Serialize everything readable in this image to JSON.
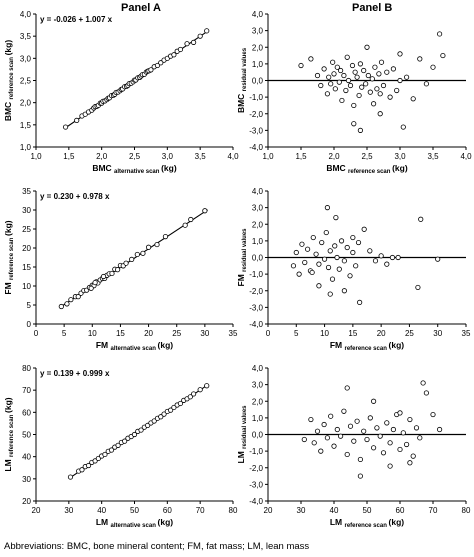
{
  "panel_titles": [
    "Panel A",
    "Panel B"
  ],
  "footnote": "Abbreviations: BMC, bone mineral content; FM, fat mass; LM, lean mass",
  "chart_data": [
    {
      "type": "scatter",
      "panel": "A",
      "row": 0,
      "equation": "y = -0.026 + 1.007 x",
      "xlabel": "BMC",
      "xlabel_sub": "alternative scan",
      "xunit": "(kg)",
      "ylabel": "BMC",
      "ylabel_sub": "reference scan",
      "yunit": "(kg)",
      "xlim": [
        1.0,
        4.0
      ],
      "ylim": [
        1.0,
        4.0
      ],
      "xticks": [
        "1,0",
        "1,5",
        "2,0",
        "2,5",
        "3,0",
        "3,5",
        "4,0"
      ],
      "yticks": [
        "1,0",
        "1,5",
        "2,0",
        "2,5",
        "3,0",
        "3,5",
        "4,0"
      ],
      "fit": {
        "intercept": -0.026,
        "slope": 1.007,
        "x_from": 1.45,
        "x_to": 3.6
      },
      "x": [
        1.45,
        1.62,
        1.7,
        1.75,
        1.8,
        1.85,
        1.88,
        1.9,
        1.93,
        1.95,
        1.98,
        2.0,
        2.02,
        2.05,
        2.08,
        2.1,
        2.12,
        2.15,
        2.18,
        2.2,
        2.22,
        2.25,
        2.28,
        2.3,
        2.32,
        2.35,
        2.38,
        2.4,
        2.42,
        2.45,
        2.48,
        2.5,
        2.52,
        2.55,
        2.58,
        2.6,
        2.62,
        2.65,
        2.68,
        2.7,
        2.72,
        2.75,
        2.8,
        2.85,
        2.9,
        2.95,
        3.0,
        3.05,
        3.1,
        3.15,
        3.2,
        3.3,
        3.4,
        3.5,
        3.6
      ],
      "y": [
        1.45,
        1.6,
        1.7,
        1.74,
        1.79,
        1.83,
        1.88,
        1.91,
        1.92,
        1.94,
        1.99,
        1.99,
        2.03,
        2.04,
        2.07,
        2.1,
        2.11,
        2.16,
        2.17,
        2.19,
        2.23,
        2.24,
        2.27,
        2.3,
        2.31,
        2.36,
        2.37,
        2.39,
        2.43,
        2.44,
        2.47,
        2.51,
        2.51,
        2.56,
        2.57,
        2.6,
        2.63,
        2.64,
        2.69,
        2.71,
        2.72,
        2.74,
        2.81,
        2.84,
        2.9,
        2.96,
        3.0,
        3.05,
        3.08,
        3.16,
        3.2,
        3.33,
        3.36,
        3.5,
        3.62
      ]
    },
    {
      "type": "scatter",
      "panel": "B",
      "row": 0,
      "xlabel": "BMC",
      "xlabel_sub": "reference scan",
      "xunit": "(kg)",
      "ylabel": "BMC",
      "ylabel_sub": "residual values",
      "yunit": "",
      "xlim": [
        1.0,
        4.0
      ],
      "ylim": [
        -4.0,
        4.0
      ],
      "xticks": [
        "1,0",
        "1,5",
        "2,0",
        "2,5",
        "3,0",
        "3,5",
        "4,0"
      ],
      "yticks": [
        "-4,0",
        "-3,0",
        "-2,0",
        "-1,0",
        "0,0",
        "1,0",
        "2,0",
        "3,0",
        "4,0"
      ],
      "zero_line": 0,
      "x": [
        1.5,
        1.65,
        1.75,
        1.8,
        1.85,
        1.9,
        1.92,
        1.95,
        1.98,
        2.0,
        2.02,
        2.05,
        2.08,
        2.1,
        2.12,
        2.15,
        2.18,
        2.2,
        2.22,
        2.25,
        2.28,
        2.3,
        2.32,
        2.35,
        2.38,
        2.4,
        2.42,
        2.45,
        2.48,
        2.5,
        2.52,
        2.55,
        2.58,
        2.6,
        2.62,
        2.65,
        2.68,
        2.7,
        2.72,
        2.75,
        2.8,
        2.85,
        2.9,
        2.95,
        3.0,
        3.05,
        3.1,
        3.2,
        3.3,
        3.4,
        3.5,
        3.6,
        3.65,
        2.4,
        2.3,
        3.0,
        2.7
      ],
      "y": [
        0.9,
        1.3,
        0.3,
        -0.3,
        0.7,
        -0.8,
        0.2,
        -0.2,
        1.1,
        0.4,
        -0.5,
        0.8,
        -0.1,
        0.6,
        -1.2,
        0.3,
        -0.6,
        1.4,
        0.0,
        -0.3,
        0.9,
        -1.5,
        0.5,
        0.2,
        -0.9,
        1.0,
        -0.4,
        0.6,
        -0.2,
        2.0,
        0.3,
        -0.7,
        0.1,
        -1.4,
        0.8,
        -0.5,
        0.4,
        -2.0,
        1.1,
        -0.3,
        0.5,
        -1.0,
        0.7,
        -0.6,
        1.6,
        -2.8,
        0.2,
        -1.1,
        1.3,
        -0.2,
        0.8,
        2.8,
        1.5,
        -3.0,
        -2.6,
        0.0,
        -0.8
      ]
    },
    {
      "type": "scatter",
      "panel": "A",
      "row": 1,
      "equation": "y = 0.230 + 0.978 x",
      "xlabel": "FM",
      "xlabel_sub": "alternative scan",
      "xunit": "(kg)",
      "ylabel": "FM",
      "ylabel_sub": "reference scan",
      "yunit": "(kg)",
      "xlim": [
        0,
        35
      ],
      "ylim": [
        0,
        35
      ],
      "xticks": [
        "0",
        "5",
        "10",
        "15",
        "20",
        "25",
        "30",
        "35"
      ],
      "yticks": [
        "0",
        "5",
        "10",
        "15",
        "20",
        "25",
        "30",
        "35"
      ],
      "fit": {
        "intercept": 0.23,
        "slope": 0.978,
        "x_from": 4.5,
        "x_to": 30.5
      },
      "x": [
        4.5,
        5.5,
        6.2,
        7.0,
        7.5,
        8.0,
        8.5,
        9.0,
        9.5,
        10.0,
        10.3,
        10.7,
        11.0,
        11.4,
        11.8,
        12.2,
        12.6,
        13.0,
        13.5,
        14.0,
        14.5,
        15.0,
        15.5,
        16.0,
        17.0,
        18.0,
        19.0,
        20.0,
        21.5,
        23.0,
        26.5,
        27.5,
        30.0,
        12.0,
        10.5,
        9.8
      ],
      "y": [
        4.6,
        5.3,
        6.4,
        7.2,
        7.2,
        8.1,
        8.8,
        8.9,
        9.6,
        10.2,
        10.1,
        11.1,
        10.8,
        11.6,
        12.0,
        12.0,
        12.8,
        13.2,
        13.3,
        14.4,
        14.3,
        15.4,
        15.3,
        16.0,
        17.0,
        18.3,
        18.6,
        20.2,
        20.9,
        23.0,
        26.0,
        27.5,
        29.8,
        12.5,
        10.9,
        9.4
      ]
    },
    {
      "type": "scatter",
      "panel": "B",
      "row": 1,
      "xlabel": "FM",
      "xlabel_sub": "reference scan",
      "xunit": "(kg)",
      "ylabel": "FM",
      "ylabel_sub": "residual values",
      "yunit": "",
      "xlim": [
        0,
        35
      ],
      "ylim": [
        -4.0,
        4.0
      ],
      "xticks": [
        "0",
        "5",
        "10",
        "15",
        "20",
        "25",
        "30",
        "35"
      ],
      "yticks": [
        "-4,0",
        "-3,0",
        "-2,0",
        "-1,0",
        "0,0",
        "1,0",
        "2,0",
        "3,0",
        "4,0"
      ],
      "zero_line": 0,
      "x": [
        4.5,
        5.0,
        5.5,
        6.0,
        6.5,
        7.0,
        7.5,
        8.0,
        8.5,
        9.0,
        9.5,
        10.0,
        10.3,
        10.7,
        11.0,
        11.4,
        11.8,
        12.2,
        12.6,
        13.0,
        13.5,
        14.0,
        14.5,
        15.0,
        15.5,
        16.0,
        17.0,
        18.0,
        19.0,
        20.0,
        21.0,
        22.0,
        23.0,
        27.0,
        30.0,
        10.5,
        12.0,
        15.0,
        9.0,
        11.0,
        13.5,
        26.5,
        7.8,
        16.2
      ],
      "y": [
        -0.5,
        0.3,
        -1.0,
        0.8,
        -0.3,
        0.5,
        -0.8,
        1.2,
        0.2,
        -0.4,
        0.9,
        -0.1,
        1.5,
        -0.6,
        0.4,
        -1.3,
        0.7,
        0.0,
        -0.7,
        1.0,
        -0.2,
        0.6,
        -1.1,
        0.3,
        -0.5,
        0.9,
        1.7,
        0.4,
        -0.2,
        0.1,
        -0.4,
        0.0,
        0.0,
        2.3,
        -0.1,
        3.0,
        2.4,
        1.2,
        -1.7,
        -2.2,
        -2.0,
        -1.8,
        -0.9,
        -2.7
      ]
    },
    {
      "type": "scatter",
      "panel": "A",
      "row": 2,
      "equation": "y = 0.139 + 0.999 x",
      "xlabel": "LM",
      "xlabel_sub": "alternative scan",
      "xunit": "(kg)",
      "ylabel": "LM",
      "ylabel_sub": "reference scan",
      "yunit": "(kg)",
      "xlim": [
        20,
        80
      ],
      "ylim": [
        20,
        80
      ],
      "xticks": [
        "20",
        "30",
        "40",
        "50",
        "60",
        "70",
        "80"
      ],
      "yticks": [
        "20",
        "30",
        "40",
        "50",
        "60",
        "70",
        "80"
      ],
      "fit": {
        "intercept": 0.139,
        "slope": 0.999,
        "x_from": 30,
        "x_to": 72.5
      },
      "x": [
        30.5,
        33,
        34,
        35,
        36,
        37,
        38,
        39,
        40,
        41,
        42,
        43,
        44,
        45,
        46,
        47,
        48,
        49,
        50,
        51,
        52,
        53,
        54,
        55,
        56,
        57,
        58,
        59,
        60,
        61,
        62,
        63,
        64,
        65,
        66,
        67,
        68,
        70,
        72
      ],
      "y": [
        30.8,
        33.5,
        34.1,
        35.5,
        36.0,
        37.4,
        38.1,
        39.2,
        40.3,
        41.0,
        42.4,
        43.0,
        44.3,
        45.1,
        46.4,
        47.0,
        48.3,
        49.1,
        50.0,
        51.4,
        52.0,
        53.3,
        54.1,
        55.2,
        56.1,
        57.3,
        58.0,
        59.2,
        60.4,
        61.0,
        62.2,
        63.3,
        64.0,
        65.4,
        66.1,
        67.0,
        68.3,
        70.2,
        72.0
      ]
    },
    {
      "type": "scatter",
      "panel": "B",
      "row": 2,
      "xlabel": "LM",
      "xlabel_sub": "reference scan",
      "xunit": "(kg)",
      "ylabel": "LM",
      "ylabel_sub": "residual values",
      "yunit": "",
      "xlim": [
        20,
        80
      ],
      "ylim": [
        -4.0,
        4.0
      ],
      "xticks": [
        "20",
        "30",
        "40",
        "50",
        "60",
        "70",
        "80"
      ],
      "yticks": [
        "-4,0",
        "-3,0",
        "-2,0",
        "-1,0",
        "0,0",
        "1,0",
        "2,0",
        "3,0",
        "4,0"
      ],
      "zero_line": 0,
      "x": [
        31,
        33,
        34,
        35,
        36,
        37,
        38,
        39,
        40,
        41,
        42,
        43,
        44,
        45,
        46,
        47,
        48,
        49,
        50,
        51,
        52,
        53,
        54,
        55,
        56,
        57,
        58,
        59,
        60,
        61,
        62,
        63,
        64,
        65,
        66,
        67,
        68,
        70,
        72,
        44,
        48,
        52,
        57,
        60,
        63
      ],
      "y": [
        -0.3,
        0.9,
        -0.5,
        0.2,
        -1.0,
        0.6,
        -0.2,
        1.1,
        -0.7,
        0.3,
        -0.1,
        1.4,
        -1.2,
        0.5,
        -0.4,
        0.8,
        -1.5,
        0.2,
        -0.3,
        1.0,
        -0.8,
        0.4,
        -0.1,
        -1.1,
        0.7,
        -0.5,
        0.3,
        1.2,
        -0.9,
        0.1,
        -0.6,
        0.9,
        -1.3,
        0.4,
        -0.2,
        3.1,
        2.5,
        1.2,
        0.3,
        2.8,
        -2.5,
        2.0,
        -1.9,
        1.3,
        -1.7
      ]
    }
  ]
}
